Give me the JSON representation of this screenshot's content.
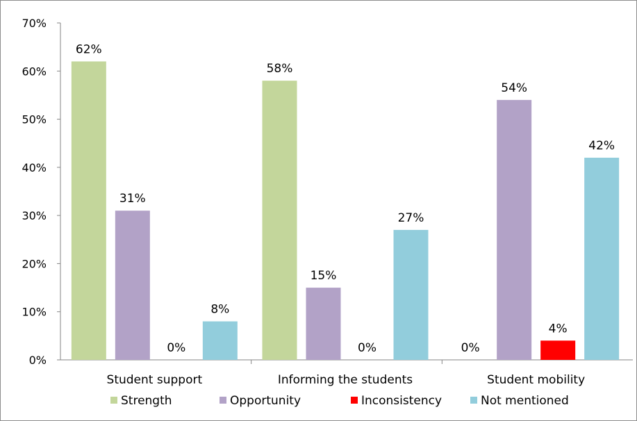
{
  "chart_data": {
    "type": "bar",
    "categories": [
      "Student support",
      "Informing the students",
      "Student mobility"
    ],
    "series": [
      {
        "name": "Strength",
        "color": "#c3d69b",
        "values": [
          62,
          58,
          0
        ],
        "labels": [
          "62%",
          "58%",
          "0%"
        ]
      },
      {
        "name": "Opportunity",
        "color": "#b2a2c7",
        "values": [
          31,
          15,
          54
        ],
        "labels": [
          "31%",
          "15%",
          "54%"
        ]
      },
      {
        "name": "Inconsistency",
        "color": "#ff0000",
        "values": [
          0,
          0,
          4
        ],
        "labels": [
          "0%",
          "0%",
          "4%"
        ]
      },
      {
        "name": "Not mentioned",
        "color": "#92cddc",
        "values": [
          8,
          27,
          42
        ],
        "labels": [
          "8%",
          "27%",
          "42%"
        ]
      }
    ],
    "ylim": [
      0,
      70
    ],
    "yticks": [
      0,
      10,
      20,
      30,
      40,
      50,
      60,
      70
    ],
    "ytick_labels": [
      "0%",
      "10%",
      "20%",
      "30%",
      "40%",
      "50%",
      "60%",
      "70%"
    ],
    "grid": false,
    "legend": "bottom",
    "title": "",
    "xlabel": "",
    "ylabel": ""
  }
}
